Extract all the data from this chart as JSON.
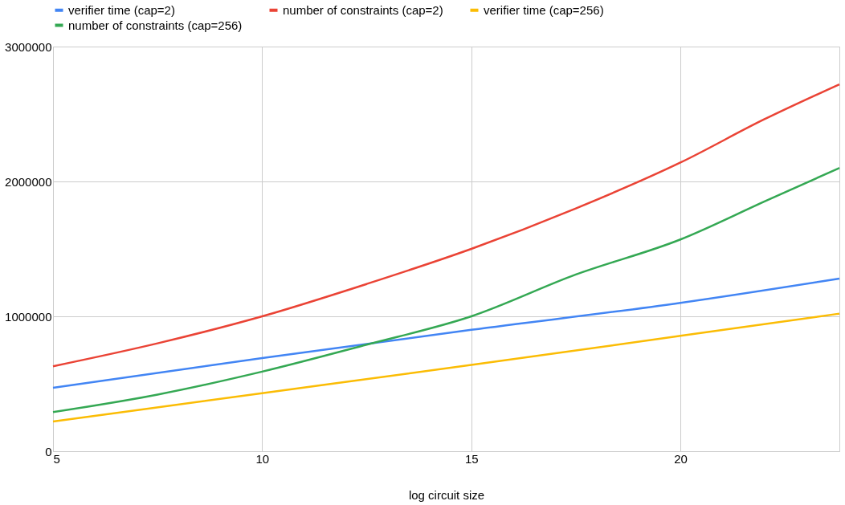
{
  "chart_data": {
    "type": "line",
    "xlabel": "log circuit size",
    "xlim": [
      5,
      23.8
    ],
    "xticks": [
      5,
      10,
      15,
      20
    ],
    "ylim": [
      0,
      3000000
    ],
    "yticks": [
      0,
      1000000,
      2000000,
      3000000
    ],
    "grid": true,
    "legend": "top",
    "marker": "none",
    "line_style": "solid",
    "series": [
      {
        "name": "verifier time (cap=2)",
        "color": "#4285f4",
        "x": [
          5,
          10,
          15,
          20,
          23.8
        ],
        "values": [
          470000,
          690000,
          900000,
          1100000,
          1280000
        ]
      },
      {
        "name": "number of constraints (cap=2)",
        "color": "#ea4335",
        "x": [
          5,
          7.5,
          10,
          12.5,
          15,
          17.5,
          20,
          22,
          23.8
        ],
        "values": [
          630000,
          800000,
          1000000,
          1240000,
          1500000,
          1800000,
          2140000,
          2460000,
          2720000
        ]
      },
      {
        "name": "verifier time (cap=256)",
        "color": "#fbbc04",
        "x": [
          5,
          10,
          15,
          20,
          23.8
        ],
        "values": [
          220000,
          430000,
          640000,
          855000,
          1020000
        ]
      },
      {
        "name": "number of constraints (cap=256)",
        "color": "#34a853",
        "x": [
          5,
          7.5,
          10,
          12.5,
          15,
          17.5,
          20,
          22,
          23.8
        ],
        "values": [
          290000,
          420000,
          590000,
          790000,
          1000000,
          1310000,
          1570000,
          1850000,
          2100000
        ]
      }
    ]
  }
}
